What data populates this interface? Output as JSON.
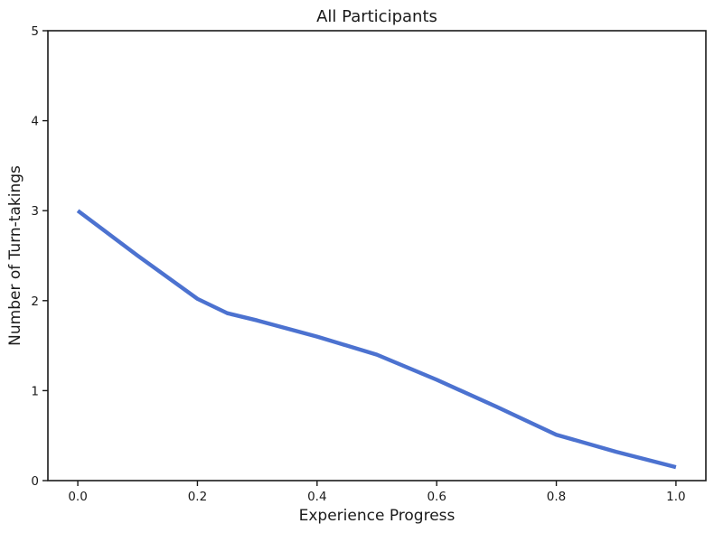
{
  "chart_data": {
    "type": "line",
    "title": "All Participants",
    "xlabel": "Experience Progress",
    "ylabel": "Number of Turn-takings",
    "xlim": [
      -0.05,
      1.05
    ],
    "ylim": [
      0,
      5
    ],
    "x_ticks": [
      0.0,
      0.2,
      0.4,
      0.6,
      0.8,
      1.0
    ],
    "x_tick_labels": [
      "0.0",
      "0.2",
      "0.4",
      "0.6",
      "0.8",
      "1.0"
    ],
    "y_ticks": [
      0,
      1,
      2,
      3,
      4,
      5
    ],
    "y_tick_labels": [
      "0",
      "1",
      "2",
      "3",
      "4",
      "5"
    ],
    "grid": false,
    "legend": null,
    "colors": {
      "line": "#4c72d0",
      "spine": "#1a1a1a",
      "background": "#ffffff"
    },
    "series": [
      {
        "x": [
          0.0,
          0.1,
          0.2,
          0.25,
          0.3,
          0.4,
          0.5,
          0.6,
          0.7,
          0.8,
          0.9,
          1.0
        ],
        "y": [
          3.0,
          2.5,
          2.02,
          1.86,
          1.78,
          1.6,
          1.4,
          1.12,
          0.82,
          0.51,
          0.32,
          0.15
        ]
      }
    ]
  }
}
